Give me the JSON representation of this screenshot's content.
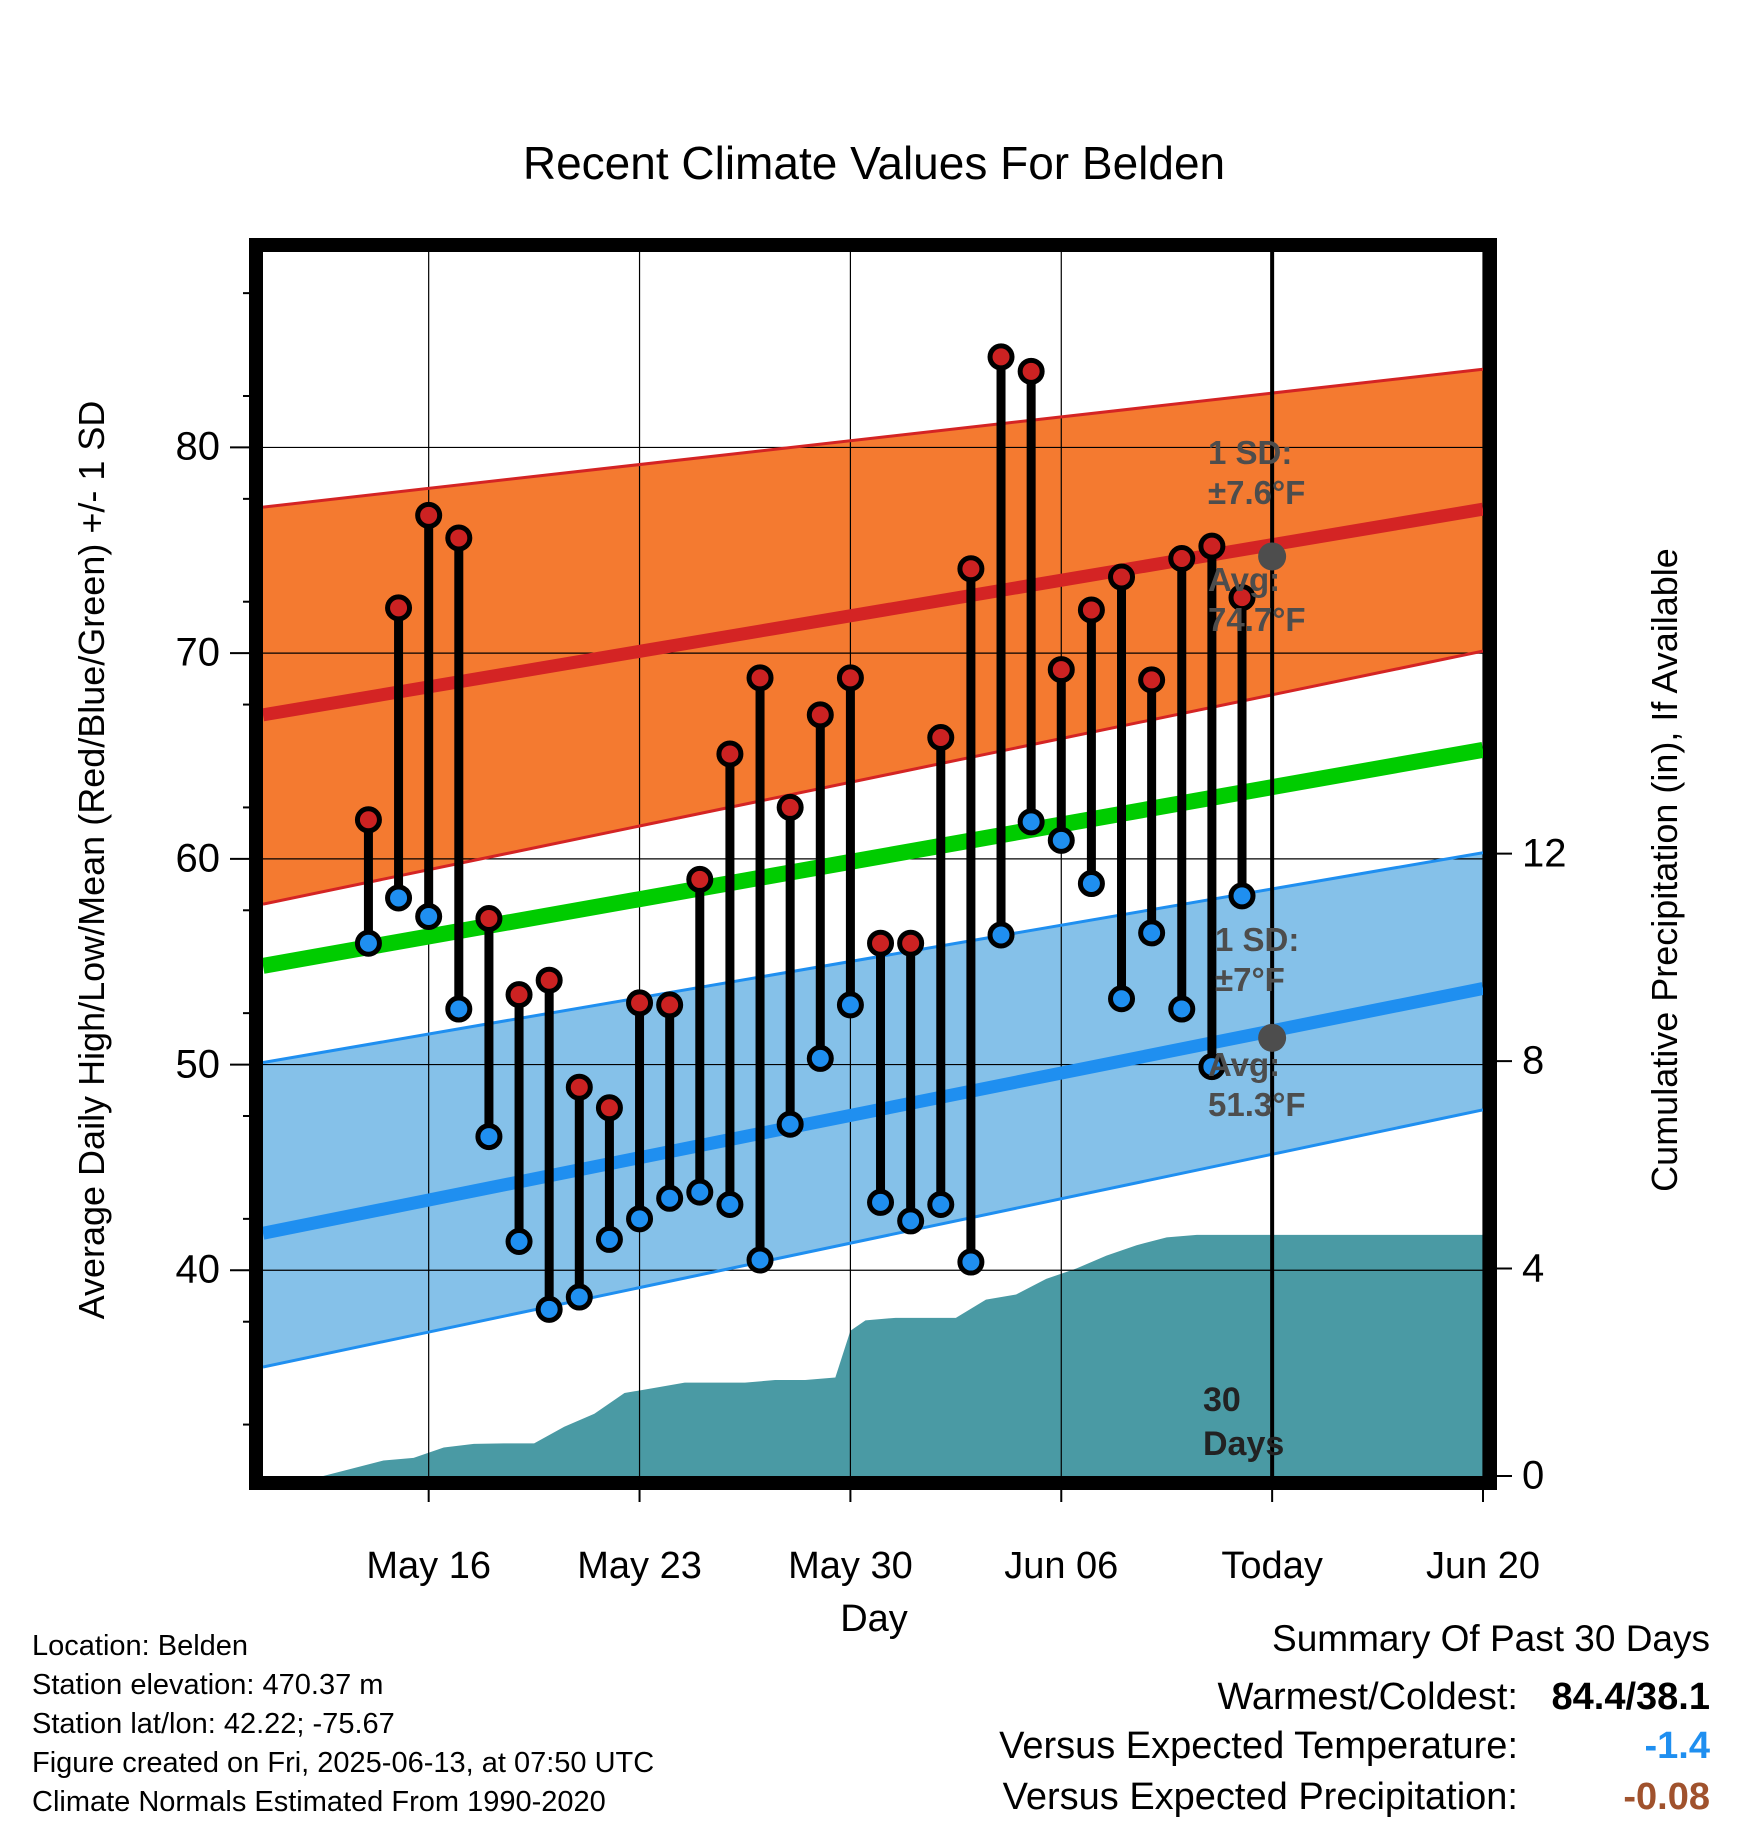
{
  "chart_data": {
    "type": "line",
    "title": "Recent Climate Values For Belden",
    "xlabel": "Day",
    "ylabel": "Average Daily High/Low/Mean (Red/Blue/Green) +/- 1 SD",
    "y2label": "Cumulative Precipitation (in), If Available",
    "x_day_range": [
      -33.5,
      7
    ],
    "ylim": [
      30,
      89.5
    ],
    "y2lim": [
      0,
      23.6
    ],
    "yticks": [
      40,
      50,
      60,
      70,
      80
    ],
    "y2ticks": [
      0,
      4,
      8,
      12
    ],
    "x_tick_labels": [
      {
        "offset": -28,
        "label": "May 16"
      },
      {
        "offset": -21,
        "label": "May 23"
      },
      {
        "offset": -14,
        "label": "May 30"
      },
      {
        "offset": -7,
        "label": "Jun 06"
      },
      {
        "offset": 0,
        "label": "Today"
      },
      {
        "offset": 7,
        "label": "Jun 20"
      }
    ],
    "grid": true,
    "daily": {
      "day_offset": [
        -30,
        -29,
        -28,
        -27,
        -26,
        -25,
        -24,
        -23,
        -22,
        -21,
        -20,
        -19,
        -18,
        -17,
        -16,
        -15,
        -14,
        -13,
        -12,
        -11,
        -10,
        -9,
        -8,
        -7,
        -6,
        -5,
        -4,
        -3,
        -2,
        -1
      ],
      "high": [
        61.9,
        72.2,
        76.7,
        75.6,
        57.1,
        53.4,
        54.1,
        48.9,
        47.9,
        53.0,
        52.9,
        59.0,
        65.1,
        68.8,
        62.5,
        67.0,
        68.8,
        55.9,
        55.9,
        65.9,
        74.1,
        84.4,
        83.7,
        69.2,
        72.1,
        73.7,
        68.7,
        74.6,
        75.2,
        72.7
      ],
      "low": [
        55.9,
        58.1,
        57.2,
        52.7,
        46.5,
        41.4,
        38.1,
        38.7,
        41.5,
        42.5,
        43.5,
        43.8,
        43.2,
        40.5,
        47.1,
        50.3,
        52.9,
        43.3,
        42.4,
        43.2,
        40.4,
        56.3,
        61.8,
        60.9,
        58.8,
        53.2,
        56.4,
        52.7,
        49.9,
        58.2
      ]
    },
    "normals": {
      "day_offset": [
        -33.5,
        7
      ],
      "avg_high": [
        67.0,
        77.0
      ],
      "avg_high_upper": [
        77.1,
        83.8
      ],
      "avg_high_lower": [
        57.8,
        70.1
      ],
      "avg_mean": [
        54.8,
        65.3
      ],
      "avg_low": [
        41.8,
        53.7
      ],
      "avg_low_upper": [
        50.1,
        60.3
      ],
      "avg_low_lower": [
        35.3,
        47.8
      ]
    },
    "precip_cumulative": {
      "day_offset": [
        -33.5,
        -31.5,
        -30.5,
        -29.5,
        -28.5,
        -27.5,
        -26.5,
        -25.5,
        -24.5,
        -23.5,
        -22.5,
        -21.5,
        -20.5,
        -19.5,
        -18.5,
        -17.5,
        -16.5,
        -15.5,
        -14.5,
        -14,
        -13.5,
        -12.5,
        -11.5,
        -10.5,
        -9.5,
        -8.5,
        -7.5,
        -6.5,
        -5.5,
        -4.5,
        -3.5,
        -2.5,
        -1.5,
        -0.5,
        0,
        7
      ],
      "value": [
        0,
        0,
        0.15,
        0.3,
        0.35,
        0.55,
        0.62,
        0.63,
        0.63,
        0.95,
        1.2,
        1.6,
        1.7,
        1.8,
        1.8,
        1.8,
        1.85,
        1.85,
        1.9,
        2.8,
        3.0,
        3.05,
        3.05,
        3.05,
        3.4,
        3.5,
        3.8,
        4.0,
        4.25,
        4.45,
        4.6,
        4.65,
        4.65,
        4.65,
        4.65,
        4.65
      ]
    },
    "today_avg_high": 74.7,
    "today_avg_low": 51.3
  },
  "annotations": {
    "high_sd": "1 SD:\n±7.6°F",
    "high_avg": "Avg:\n74.7°F",
    "low_sd": "1 SD:\n±7°F",
    "low_avg": "Avg:\n51.3°F",
    "days": "30\nDays"
  },
  "colors": {
    "high_band": "#f47a30",
    "high_line": "#d42424",
    "low_band": "#85c1e9",
    "low_line": "#1f8ff0",
    "mean_line": "#00cc00",
    "precip": "#4a9aa4",
    "high_dot": "#cc2222",
    "low_dot": "#1f8ff0"
  },
  "footer": {
    "location": "Location: Belden",
    "elevation": "Station elevation: 470.37 m",
    "latlon": "Station lat/lon: 42.22; -75.67",
    "created": "Figure created on Fri, 2025-06-13, at 07:50 UTC",
    "normals": "Climate Normals Estimated From 1990-2020"
  },
  "summary": {
    "title": "Summary Of Past 30 Days",
    "warm_cold_label": "Warmest/Coldest:",
    "warm_cold_value": "84.4/38.1",
    "temp_label": "Versus Expected Temperature:",
    "temp_value": "-1.4",
    "temp_color": "#1f8ff0",
    "precip_label": "Versus Expected Precipitation:",
    "precip_value": "-0.08",
    "precip_color": "#a0522d"
  }
}
